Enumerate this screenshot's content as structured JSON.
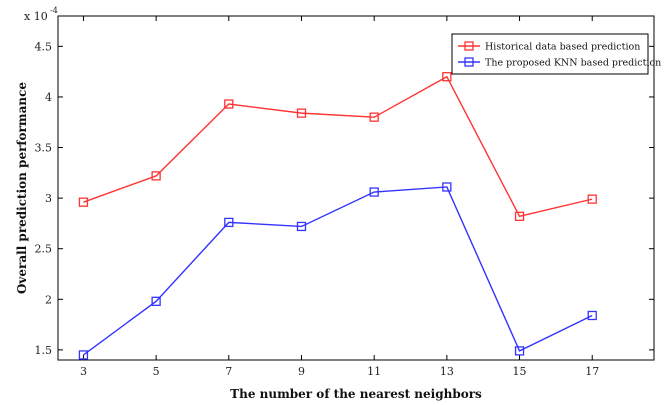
{
  "chart_data": {
    "type": "line",
    "title": "",
    "xlabel": "The number of the nearest neighbors",
    "ylabel": "Overall prediction performance",
    "y_multiplier": "x 10",
    "y_exponent": "-4",
    "x": [
      3,
      5,
      7,
      9,
      11,
      13,
      15,
      17
    ],
    "x_tick_labels": [
      "3",
      "5",
      "7",
      "9",
      "11",
      "13",
      "15",
      "17"
    ],
    "xlim": [
      2.3,
      18.7
    ],
    "y_ticks": [
      1.5,
      2,
      2.5,
      3,
      3.5,
      4,
      4.5
    ],
    "y_tick_labels": [
      "1.5",
      "2",
      "2.5",
      "3",
      "3.5",
      "4",
      "4.5"
    ],
    "ylim": [
      1.4,
      4.8
    ],
    "grid": false,
    "legend_position": "top-right",
    "series": [
      {
        "name": "Historical data based prediction",
        "color": "#ff3333",
        "marker": "square",
        "values": [
          2.96,
          3.22,
          3.93,
          3.84,
          3.8,
          4.2,
          2.82,
          2.99
        ]
      },
      {
        "name": "The proposed KNN based prediction",
        "color": "#3333ff",
        "marker": "square",
        "values": [
          1.45,
          1.98,
          2.76,
          2.72,
          3.06,
          3.11,
          1.49,
          1.84
        ]
      }
    ]
  }
}
